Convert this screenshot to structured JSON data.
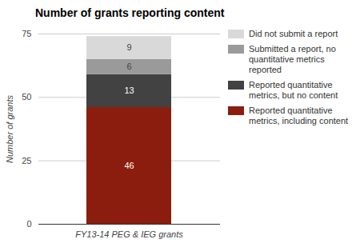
{
  "chart_data": {
    "type": "bar",
    "title": "Number of grants reporting content",
    "y_label": "Number of grants",
    "categories": [
      "FY13-14 PEG & IEG grants"
    ],
    "series": [
      {
        "name": "Reported quantitative metrics, including content",
        "color": "#8b1d0e",
        "values": [
          46
        ]
      },
      {
        "name": "Reported quantitative metrics, but no content",
        "color": "#424242",
        "values": [
          13
        ]
      },
      {
        "name": "Submitted a report, no quantitative metrics reported",
        "color": "#9a9a9a",
        "values": [
          6
        ]
      },
      {
        "name": "Did not submit a report",
        "color": "#d9d9d9",
        "values": [
          9
        ]
      }
    ],
    "stacked": true,
    "data_labels": true,
    "legend": "right",
    "ylim": [
      0,
      75
    ],
    "yticks": [
      0,
      25,
      50,
      75
    ],
    "grid": true
  }
}
